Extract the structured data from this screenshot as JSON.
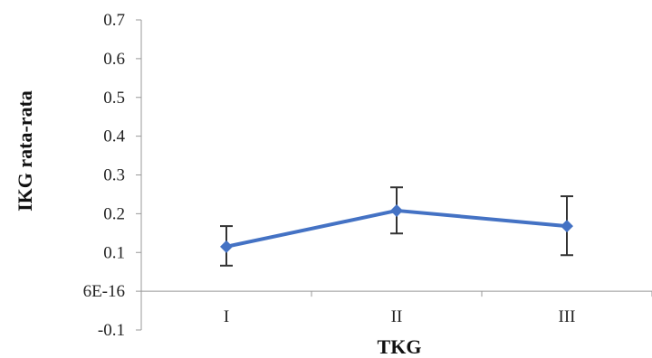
{
  "chart_data": {
    "type": "line",
    "title": "",
    "xlabel": "TKG",
    "ylabel": "IKG rata-rata",
    "categories": [
      "I",
      "II",
      "III"
    ],
    "series": [
      {
        "values": [
          0.115,
          0.208,
          0.168
        ],
        "error_low": [
          0.066,
          0.149,
          0.093
        ],
        "error_high": [
          0.168,
          0.268,
          0.245
        ],
        "color": "#4472C4",
        "marker": "diamond"
      }
    ],
    "ylim": [
      -0.1,
      0.7
    ],
    "yticks": [
      0.7,
      0.6,
      0.5,
      0.4,
      0.3,
      0.2,
      0.1,
      0,
      -0.1
    ],
    "ytick_labels": [
      "0.7",
      "0.6",
      "0.5",
      "0.4",
      "0.3",
      "0.2",
      "0.1",
      "6E-16",
      "-0.1"
    ],
    "grid": false,
    "legend": "none",
    "axis_color": "#999999",
    "errorbar_color": "#333333"
  }
}
